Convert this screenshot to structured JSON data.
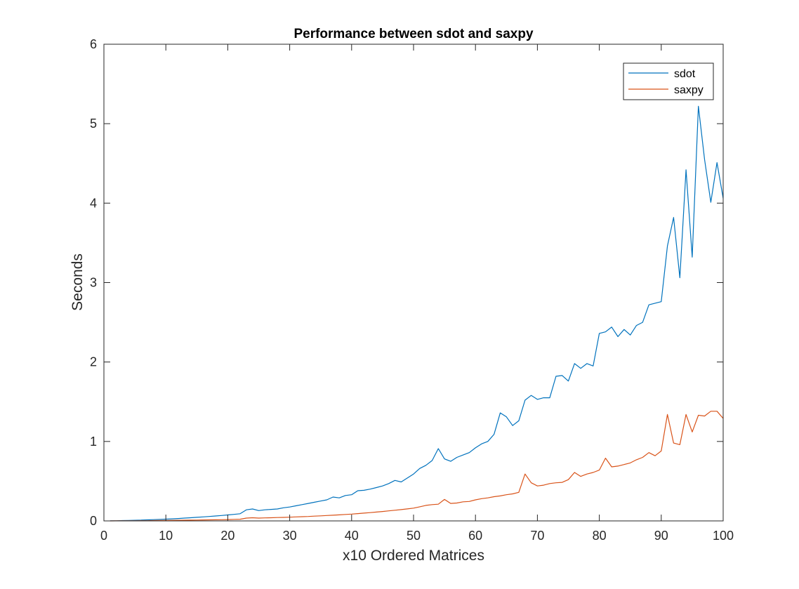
{
  "chart_data": {
    "type": "line",
    "title": "Performance between sdot and saxpy",
    "xlabel": "x10 Ordered Matrices",
    "ylabel": "Seconds",
    "xlim": [
      0,
      100
    ],
    "ylim": [
      0,
      6
    ],
    "xticks": [
      0,
      10,
      20,
      30,
      40,
      50,
      60,
      70,
      80,
      90,
      100
    ],
    "yticks": [
      0,
      1,
      2,
      3,
      4,
      5,
      6
    ],
    "grid": false,
    "legend_position": "top-right",
    "x": [
      1,
      2,
      3,
      4,
      5,
      6,
      7,
      8,
      9,
      10,
      11,
      12,
      13,
      14,
      15,
      16,
      17,
      18,
      19,
      20,
      21,
      22,
      23,
      24,
      25,
      26,
      27,
      28,
      29,
      30,
      31,
      32,
      33,
      34,
      35,
      36,
      37,
      38,
      39,
      40,
      41,
      42,
      43,
      44,
      45,
      46,
      47,
      48,
      49,
      50,
      51,
      52,
      53,
      54,
      55,
      56,
      57,
      58,
      59,
      60,
      61,
      62,
      63,
      64,
      65,
      66,
      67,
      68,
      69,
      70,
      71,
      72,
      73,
      74,
      75,
      76,
      77,
      78,
      79,
      80,
      81,
      82,
      83,
      84,
      85,
      86,
      87,
      88,
      89,
      90,
      91,
      92,
      93,
      94,
      95,
      96,
      97,
      98,
      99,
      100
    ],
    "series": [
      {
        "name": "sdot",
        "color": "#0072BD",
        "values": [
          0.001,
          0.002,
          0.004,
          0.006,
          0.008,
          0.01,
          0.013,
          0.016,
          0.019,
          0.022,
          0.026,
          0.03,
          0.035,
          0.04,
          0.045,
          0.05,
          0.056,
          0.062,
          0.068,
          0.075,
          0.082,
          0.09,
          0.14,
          0.15,
          0.13,
          0.14,
          0.145,
          0.15,
          0.165,
          0.175,
          0.19,
          0.205,
          0.22,
          0.235,
          0.25,
          0.265,
          0.3,
          0.29,
          0.32,
          0.33,
          0.38,
          0.385,
          0.4,
          0.42,
          0.44,
          0.47,
          0.51,
          0.49,
          0.54,
          0.59,
          0.66,
          0.7,
          0.76,
          0.91,
          0.78,
          0.75,
          0.8,
          0.83,
          0.86,
          0.92,
          0.97,
          1.0,
          1.09,
          1.36,
          1.31,
          1.2,
          1.26,
          1.52,
          1.58,
          1.53,
          1.55,
          1.55,
          1.82,
          1.83,
          1.76,
          1.98,
          1.92,
          1.98,
          1.95,
          2.36,
          2.38,
          2.44,
          2.32,
          2.41,
          2.34,
          2.46,
          2.5,
          2.72,
          2.74,
          2.76,
          3.46,
          3.82,
          3.06,
          4.42,
          3.32,
          5.22,
          4.55,
          4.01,
          4.51,
          4.06
        ]
      },
      {
        "name": "saxpy",
        "color": "#D95319",
        "values": [
          0.0,
          0.001,
          0.001,
          0.002,
          0.002,
          0.003,
          0.003,
          0.004,
          0.005,
          0.006,
          0.007,
          0.008,
          0.009,
          0.01,
          0.011,
          0.012,
          0.013,
          0.014,
          0.015,
          0.017,
          0.019,
          0.021,
          0.035,
          0.04,
          0.035,
          0.038,
          0.04,
          0.042,
          0.044,
          0.047,
          0.05,
          0.053,
          0.056,
          0.06,
          0.064,
          0.068,
          0.072,
          0.076,
          0.081,
          0.086,
          0.092,
          0.098,
          0.104,
          0.111,
          0.118,
          0.126,
          0.134,
          0.142,
          0.151,
          0.161,
          0.178,
          0.195,
          0.205,
          0.21,
          0.27,
          0.22,
          0.225,
          0.24,
          0.245,
          0.265,
          0.28,
          0.29,
          0.305,
          0.315,
          0.33,
          0.34,
          0.36,
          0.59,
          0.48,
          0.44,
          0.45,
          0.47,
          0.48,
          0.485,
          0.52,
          0.61,
          0.56,
          0.59,
          0.61,
          0.64,
          0.79,
          0.68,
          0.69,
          0.71,
          0.73,
          0.77,
          0.8,
          0.86,
          0.82,
          0.88,
          1.34,
          0.98,
          0.96,
          1.34,
          1.12,
          1.33,
          1.32,
          1.38,
          1.38,
          1.29
        ]
      }
    ]
  }
}
